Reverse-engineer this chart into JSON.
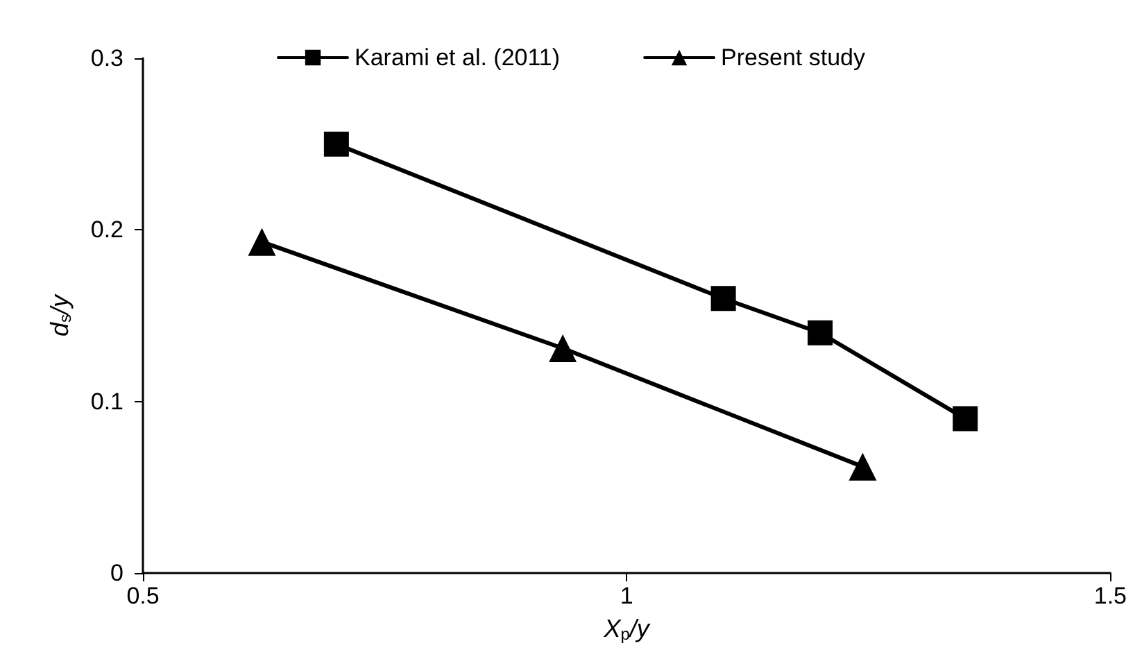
{
  "chart_data": {
    "type": "line",
    "xlabel": "X$_{p}$/y",
    "ylabel": "d$_{s}$/y",
    "xlim": [
      0.5,
      1.5
    ],
    "xticks": [
      0.5,
      1,
      1.5
    ],
    "ylim": [
      0,
      0.3
    ],
    "yticks": [
      0,
      0.1,
      0.2,
      0.3
    ],
    "grid": false,
    "legend": "top",
    "line_style": "solid",
    "series": [
      {
        "name": "Karami et al. (2011)",
        "color": "#000000",
        "marker": "square",
        "x": [
          0.7,
          1.1,
          1.2,
          1.35
        ],
        "values": [
          0.25,
          0.16,
          0.14,
          0.09
        ]
      },
      {
        "name": "Present study",
        "color": "#000000",
        "marker": "triangle",
        "x": [
          0.623,
          0.934,
          1.244
        ],
        "values": [
          0.193,
          0.131,
          0.062
        ]
      }
    ]
  }
}
